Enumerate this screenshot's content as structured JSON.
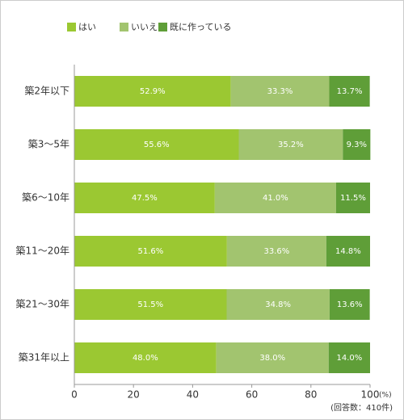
{
  "chart_data": {
    "type": "stacked-bar-horizontal",
    "categories": [
      "築2年以下",
      "築3～5年",
      "築6～10年",
      "築11～20年",
      "築21～30年",
      "築31年以上"
    ],
    "series": [
      {
        "name": "はい",
        "color": "#9bc832",
        "values": [
          52.9,
          55.6,
          47.5,
          51.6,
          51.5,
          48.0
        ],
        "value_labels": [
          "52.9%",
          "55.6%",
          "47.5%",
          "51.6%",
          "51.5%",
          "48.0%"
        ]
      },
      {
        "name": "いいえ",
        "color": "#a2c46f",
        "values": [
          33.3,
          35.2,
          41.0,
          33.6,
          34.8,
          38.0
        ],
        "value_labels": [
          "33.3%",
          "35.2%",
          "41.0%",
          "33.6%",
          "34.8%",
          "38.0%"
        ]
      },
      {
        "name": "既に作っている",
        "color": "#5f9e38",
        "values": [
          13.7,
          9.3,
          11.5,
          14.8,
          13.6,
          14.0
        ],
        "value_labels": [
          "13.7%",
          "9.3%",
          "11.5%",
          "14.8%",
          "13.6%",
          "14.0%"
        ]
      }
    ],
    "xlim": [
      0,
      100
    ],
    "xticks": [
      0,
      20,
      40,
      60,
      80,
      100
    ],
    "xlabel": "(%)",
    "note": "(回答数：410件)",
    "grid": false
  }
}
